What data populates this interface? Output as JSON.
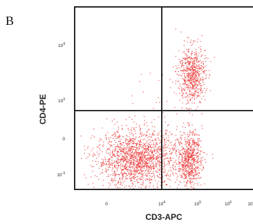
{
  "panel_label": "B",
  "chart_data": {
    "type": "scatter",
    "title": "",
    "xlabel": "CD3-APC",
    "ylabel": "CD4-PE",
    "x_scale": "biexponential",
    "y_scale": "biexponential",
    "x_ticks": [
      {
        "sup": "",
        "base": "0"
      },
      {
        "sup": "4",
        "base": "10"
      },
      {
        "sup": "5",
        "base": "10"
      },
      {
        "sup": "6",
        "base": "10"
      },
      {
        "sup": "",
        "base": "10"
      }
    ],
    "y_ticks": [
      {
        "sup": "4",
        "base": "10"
      },
      {
        "sup": "3",
        "base": "10"
      },
      {
        "sup": "",
        "base": "0"
      },
      {
        "sup": "-3",
        "base": "10"
      }
    ],
    "gate_lines": {
      "x_decades": 0.52,
      "y_decades": 0.5
    },
    "point_color": "#e8312f",
    "line_color": "#111111",
    "populations": [
      {
        "description": "CD3- CD4-",
        "center_decades": [
          -0.12,
          -0.35
        ],
        "spread": [
          0.55,
          0.25
        ],
        "count": 1700
      },
      {
        "description": "CD3+ CD4+",
        "center_decades": [
          1.3,
          1.15
        ],
        "spread": [
          0.18,
          0.25
        ],
        "count": 650
      },
      {
        "description": "CD3+ CD4-",
        "center_decades": [
          1.25,
          -0.35
        ],
        "spread": [
          0.16,
          0.25
        ],
        "count": 650
      },
      {
        "description": "scattered events",
        "center_decades": [
          0.6,
          0.3
        ],
        "spread": [
          0.9,
          0.9
        ],
        "count": 90
      }
    ]
  }
}
